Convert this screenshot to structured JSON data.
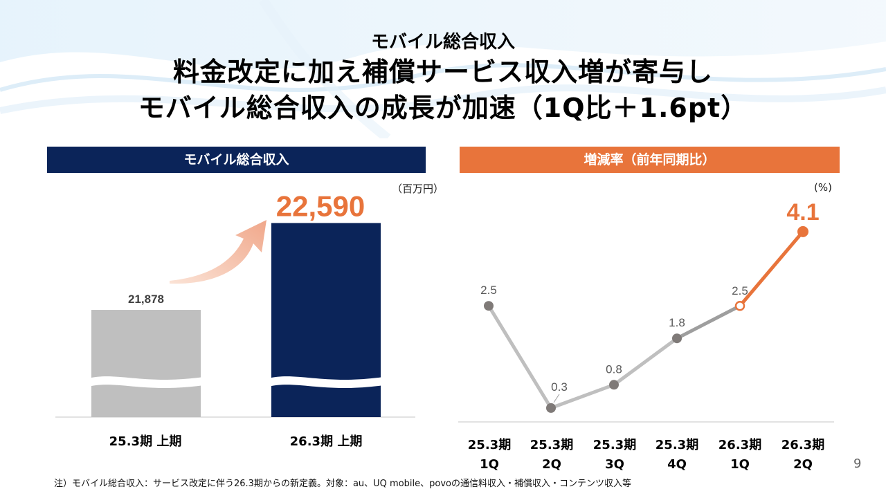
{
  "slide": {
    "kicker": "モバイル総合収入",
    "headline_line1": "料金改定に加え補償サービス収入増が寄与し",
    "headline_line2": "モバイル総合収入の成長が加速（1Q比＋1.6pt）",
    "page_number": "9",
    "footnote": "注）モバイル総合収入：サービス改定に伴う26.3期からの新定義。対象：au、UQ mobile、povoの通信料収入・補償収入・コンテンツ収入等"
  },
  "colors": {
    "navy": "#0b2459",
    "orange": "#e8743b",
    "gray_bar": "#bfbfbf",
    "gray_line": "#bfbfbf",
    "dark_gray_line": "#9e9e9e",
    "marker_gray": "#7f7a78"
  },
  "chart_data": [
    {
      "type": "bar",
      "title": "モバイル総合収入",
      "unit": "（百万円）",
      "categories": [
        "25.3期 上期",
        "26.3期 上期"
      ],
      "values": [
        21878,
        22590
      ],
      "value_labels": [
        "21,878",
        "22,590"
      ],
      "axis_break": true,
      "highlight": "26.3期 上期",
      "annotation": "growth arrow from 25.3期 上期 to 26.3期 上期"
    },
    {
      "type": "line",
      "title": "増減率（前年同期比）",
      "unit": "(%)",
      "categories": [
        [
          "25.3期",
          "1Q"
        ],
        [
          "25.3期",
          "2Q"
        ],
        [
          "25.3期",
          "3Q"
        ],
        [
          "25.3期",
          "4Q"
        ],
        [
          "26.3期",
          "1Q"
        ],
        [
          "26.3期",
          "2Q"
        ]
      ],
      "values": [
        2.5,
        0.3,
        0.8,
        1.8,
        2.5,
        4.1
      ],
      "value_labels": [
        "2.5",
        "0.3",
        "0.8",
        "1.8",
        "2.5",
        "4.1"
      ],
      "ylim": [
        0,
        4.5
      ],
      "highlight_last_segment": true
    }
  ]
}
